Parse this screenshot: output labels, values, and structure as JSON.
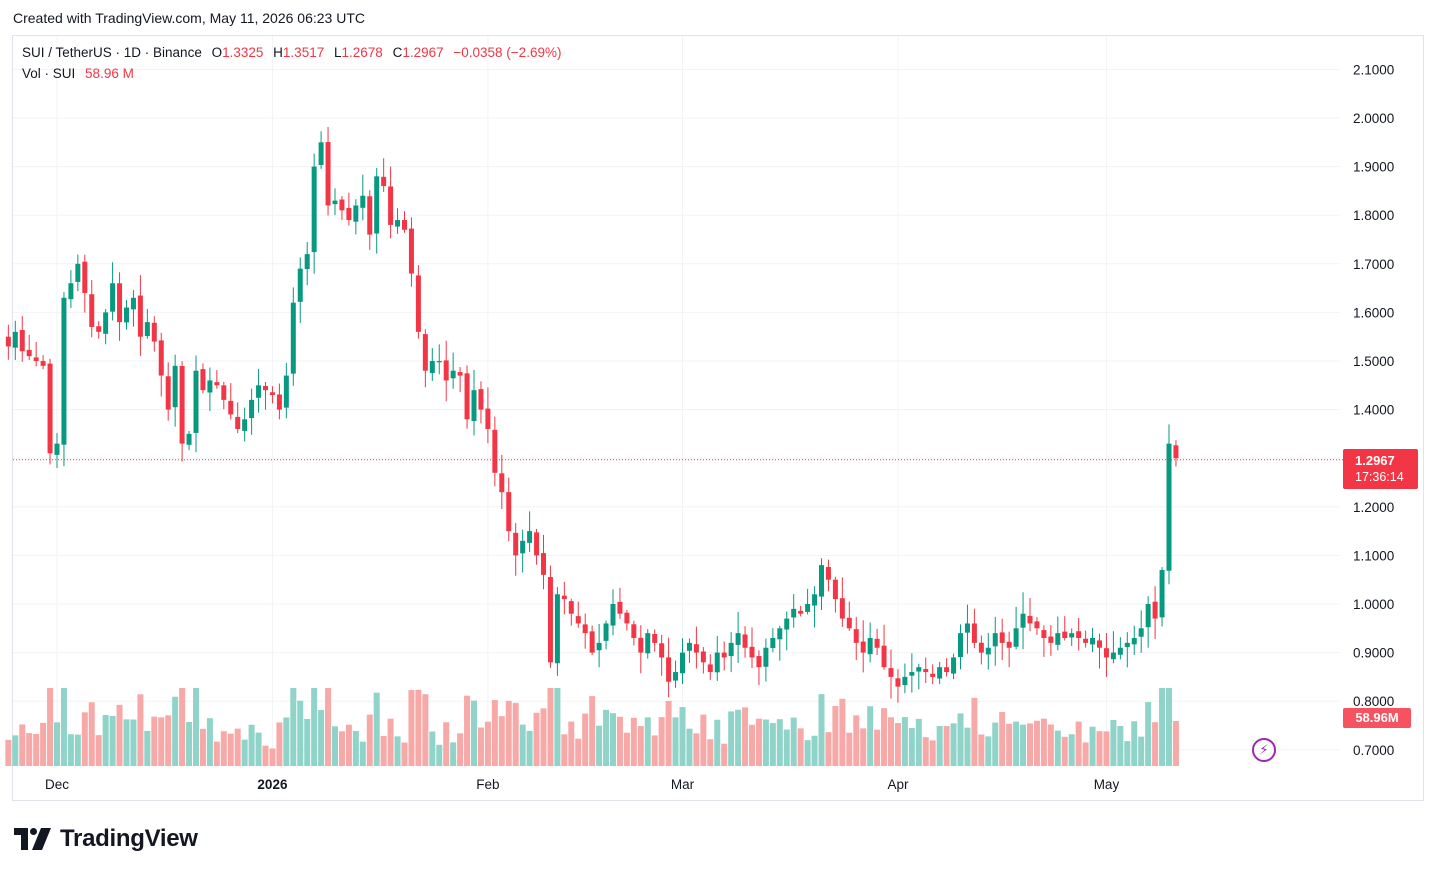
{
  "header": {
    "created_text": "Created with TradingView.com, May 11, 2026 06:23 UTC"
  },
  "legend": {
    "symbol": "SUI / TetherUS · 1D · Binance",
    "o_label": "O",
    "o_value": "1.3325",
    "h_label": "H",
    "h_value": "1.3517",
    "l_label": "L",
    "l_value": "1.2678",
    "c_label": "C",
    "c_value": "1.2967",
    "change": "−0.0358 (−2.69%)",
    "vol_label": "Vol · SUI",
    "vol_value": "58.96 M"
  },
  "badges": {
    "last_price": "1.2967",
    "countdown": "17:36:14",
    "volume": "58.96M",
    "bolt_icon": "⚡"
  },
  "brand": {
    "name": "TradingView"
  },
  "colors": {
    "up": "#089981",
    "down": "#f23645",
    "vol_up": "#8fd3c9",
    "vol_down": "#f7a9a7",
    "grid": "#f2f3f5",
    "accent": "#9c27b0"
  },
  "chart_data": {
    "type": "candlestick",
    "title": "SUI / TetherUS · 1D · Binance",
    "ylabel": "",
    "ylim": [
      0.66,
      2.2
    ],
    "y_ticks": [
      "2.1000",
      "2.0000",
      "1.9000",
      "1.8000",
      "1.7000",
      "1.6000",
      "1.5000",
      "1.4000",
      "1.3000",
      "1.2000",
      "1.1000",
      "1.0000",
      "0.9000",
      "0.8000",
      "0.7000"
    ],
    "x_ticks": [
      {
        "label": "Dec",
        "day": 0
      },
      {
        "label": "2026",
        "day": 31
      },
      {
        "label": "Feb",
        "day": 62
      },
      {
        "label": "Mar",
        "day": 90
      },
      {
        "label": "Apr",
        "day": 121
      },
      {
        "label": "May",
        "day": 151
      }
    ],
    "first_day_offset": -7,
    "last_price": 1.2967,
    "closes": [
      1.53,
      1.56,
      1.52,
      1.51,
      1.5,
      1.49,
      1.31,
      1.33,
      1.63,
      1.66,
      1.7,
      1.64,
      1.57,
      1.56,
      1.6,
      1.66,
      1.58,
      1.61,
      1.63,
      1.55,
      1.58,
      1.54,
      1.47,
      1.4,
      1.49,
      1.33,
      1.35,
      1.48,
      1.44,
      1.46,
      1.45,
      1.42,
      1.39,
      1.36,
      1.38,
      1.42,
      1.45,
      1.44,
      1.43,
      1.4,
      1.47,
      1.62,
      1.69,
      1.72,
      1.9,
      1.95,
      1.82,
      1.83,
      1.81,
      1.79,
      1.82,
      1.84,
      1.76,
      1.88,
      1.86,
      1.78,
      1.79,
      1.77,
      1.68,
      1.56,
      1.48,
      1.5,
      1.5,
      1.46,
      1.48,
      1.47,
      1.38,
      1.44,
      1.4,
      1.36,
      1.27,
      1.23,
      1.15,
      1.1,
      1.13,
      1.15,
      1.1,
      1.06,
      0.88,
      1.02,
      1.01,
      0.98,
      0.96,
      0.94,
      0.9,
      0.92,
      0.96,
      1.0,
      0.98,
      0.96,
      0.93,
      0.9,
      0.94,
      0.92,
      0.89,
      0.84,
      0.86,
      0.9,
      0.92,
      0.9,
      0.88,
      0.86,
      0.9,
      0.89,
      0.92,
      0.94,
      0.91,
      0.89,
      0.87,
      0.91,
      0.93,
      0.95,
      0.97,
      0.99,
      0.98,
      1.0,
      1.02,
      1.08,
      1.05,
      1.01,
      0.97,
      0.95,
      0.92,
      0.9,
      0.93,
      0.91,
      0.87,
      0.85,
      0.83,
      0.85,
      0.86,
      0.87,
      0.86,
      0.85,
      0.87,
      0.86,
      0.89,
      0.94,
      0.96,
      0.92,
      0.9,
      0.91,
      0.94,
      0.92,
      0.91,
      0.95,
      0.98,
      0.96,
      0.95,
      0.93,
      0.92,
      0.94,
      0.93,
      0.94,
      0.93,
      0.92,
      0.93,
      0.91,
      0.89,
      0.9,
      0.91,
      0.92,
      0.93,
      0.95,
      1.0,
      0.97,
      1.07,
      1.33,
      1.3
    ]
  }
}
